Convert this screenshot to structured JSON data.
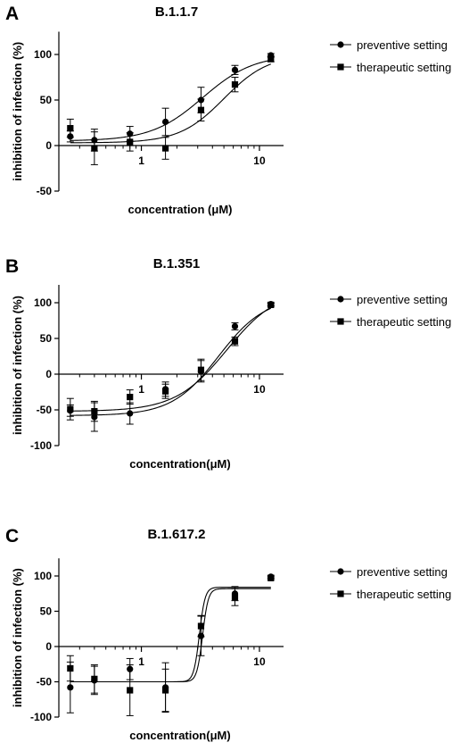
{
  "chart_data": [
    {
      "type": "scatter",
      "panel": "A",
      "title": "B.1.1.7",
      "xlabel": "concentration (μM)",
      "ylabel": "inhibition of infection (%)",
      "x_scale": "log",
      "xlim": [
        0.2,
        16
      ],
      "ylim": [
        -50,
        125
      ],
      "x_ticks": [
        1,
        10
      ],
      "y_ticks": [
        -50,
        0,
        50,
        100
      ],
      "legend_position": "right",
      "series": [
        {
          "name": "preventive setting",
          "marker": "circle",
          "x": [
            0.25,
            0.4,
            0.8,
            1.6,
            3.2,
            6.2,
            12.5
          ],
          "y": [
            10,
            6,
            13,
            26,
            50,
            83,
            99
          ],
          "err": [
            6,
            12,
            8,
            15,
            14,
            5,
            2
          ],
          "curve": {
            "bottom": 5,
            "top": 100,
            "ec50": 3.3,
            "hill": 2.0
          }
        },
        {
          "name": "therapeutic setting",
          "marker": "square",
          "x": [
            0.25,
            0.4,
            0.8,
            1.6,
            3.2,
            6.2,
            12.5
          ],
          "y": [
            19,
            -3,
            4,
            -3,
            39,
            67,
            95
          ],
          "err": [
            10,
            18,
            10,
            12,
            12,
            8,
            3
          ],
          "curve": {
            "bottom": 3,
            "top": 100,
            "ec50": 5.0,
            "hill": 2.3
          }
        }
      ]
    },
    {
      "type": "scatter",
      "panel": "B",
      "title": "B.1.351",
      "xlabel": "concentration(μM)",
      "ylabel": "inhibition of infection (%)",
      "x_scale": "log",
      "xlim": [
        0.2,
        16
      ],
      "ylim": [
        -100,
        125
      ],
      "x_ticks": [
        1,
        10
      ],
      "y_ticks": [
        -100,
        -50,
        0,
        50,
        100
      ],
      "legend_position": "right",
      "series": [
        {
          "name": "preventive setting",
          "marker": "circle",
          "x": [
            0.25,
            0.4,
            0.8,
            1.6,
            3.2,
            6.2,
            12.5
          ],
          "y": [
            -51,
            -60,
            -55,
            -21,
            4,
            67,
            98
          ],
          "err": [
            8,
            20,
            15,
            10,
            15,
            5,
            2
          ],
          "curve": {
            "bottom": -58,
            "top": 108,
            "ec50": 4.5,
            "hill": 2.2
          }
        },
        {
          "name": "therapeutic setting",
          "marker": "square",
          "x": [
            0.25,
            0.4,
            0.8,
            1.6,
            3.2,
            6.2,
            12.5
          ],
          "y": [
            -49,
            -52,
            -32,
            -24,
            6,
            46,
            97
          ],
          "err": [
            15,
            14,
            10,
            10,
            15,
            6,
            2
          ],
          "curve": {
            "bottom": -52,
            "top": 120,
            "ec50": 5.3,
            "hill": 2.0
          }
        }
      ]
    },
    {
      "type": "scatter",
      "panel": "C",
      "title": "B.1.617.2",
      "xlabel": "concentration(μM)",
      "ylabel": "inhibition of infection (%)",
      "x_scale": "log",
      "xlim": [
        0.2,
        16
      ],
      "ylim": [
        -100,
        125
      ],
      "x_ticks": [
        1,
        10
      ],
      "y_ticks": [
        -100,
        -50,
        0,
        50,
        100
      ],
      "legend_position": "right",
      "series": [
        {
          "name": "preventive setting",
          "marker": "circle",
          "x": [
            0.25,
            0.4,
            0.8,
            1.6,
            3.2,
            6.2,
            12.5
          ],
          "y": [
            -58,
            -48,
            -32,
            -58,
            15,
            75,
            99
          ],
          "err": [
            36,
            20,
            15,
            35,
            28,
            10,
            2
          ],
          "curve": {
            "bottom": -50,
            "top": 82,
            "ec50": 3.3,
            "hill": 18
          }
        },
        {
          "name": "therapeutic setting",
          "marker": "square",
          "x": [
            0.25,
            0.4,
            0.8,
            1.6,
            3.2,
            6.2,
            12.5
          ],
          "y": [
            -31,
            -46,
            -62,
            -62,
            29,
            70,
            97
          ],
          "err": [
            18,
            20,
            36,
            30,
            15,
            12,
            2
          ],
          "curve": {
            "bottom": -50,
            "top": 84,
            "ec50": 3.1,
            "hill": 18
          }
        }
      ]
    }
  ]
}
